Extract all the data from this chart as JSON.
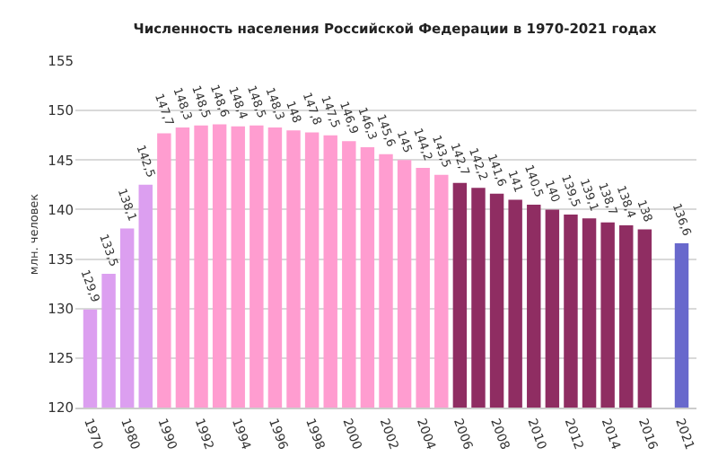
{
  "chart_data": {
    "type": "bar",
    "title": "Численность населения Российской Федерации в 1970-2021 годах",
    "ylabel": "млн. человек",
    "categories": [
      "1970",
      null,
      "1980",
      null,
      "1990",
      null,
      "1992",
      null,
      "1994",
      null,
      "1996",
      null,
      "1998",
      null,
      "2000",
      null,
      "2002",
      null,
      "2004",
      null,
      "2006",
      null,
      "2008",
      null,
      "2010",
      null,
      "2012",
      null,
      "2014",
      null,
      "2016",
      null,
      "2021"
    ],
    "values": [
      129.9,
      133.5,
      138.1,
      142.5,
      147.7,
      148.3,
      148.5,
      148.6,
      148.4,
      148.5,
      148.3,
      148,
      147.8,
      147.5,
      146.9,
      146.3,
      145.6,
      145,
      144.2,
      143.5,
      142.7,
      142.2,
      141.6,
      141,
      140.5,
      140,
      139.5,
      139.1,
      138.7,
      138.4,
      138,
      null,
      136.6
    ],
    "value_labels": [
      "129,9",
      "133,5",
      "138,1",
      "142,5",
      "147,7",
      "148,3",
      "148,5",
      "148,6",
      "148,4",
      "148,5",
      "148,3",
      "148",
      "147,8",
      "147,5",
      "146,9",
      "146,3",
      "145,6",
      "145",
      "144,2",
      "143,5",
      "142,7",
      "142,2",
      "141,6",
      "141",
      "140,5",
      "140",
      "139,5",
      "139,1",
      "138,7",
      "138,4",
      "138",
      null,
      "136,6"
    ],
    "colors": [
      "#dc9ff0",
      "#dc9ff0",
      "#dc9ff0",
      "#dc9ff0",
      "#ff9dd0",
      "#ff9dd0",
      "#ff9dd0",
      "#ff9dd0",
      "#ff9dd0",
      "#ff9dd0",
      "#ff9dd0",
      "#ff9dd0",
      "#ff9dd0",
      "#ff9dd0",
      "#ff9dd0",
      "#ff9dd0",
      "#ff9dd0",
      "#ff9dd0",
      "#ff9dd0",
      "#ff9dd0",
      "#8f2d62",
      "#8f2d62",
      "#8f2d62",
      "#8f2d62",
      "#8f2d62",
      "#8f2d62",
      "#8f2d62",
      "#8f2d62",
      "#8f2d62",
      "#8f2d62",
      "#8f2d62",
      "#8f2d62",
      "#6868cc"
    ],
    "ylim": [
      120,
      155
    ],
    "yticks": [
      120,
      125,
      130,
      135,
      140,
      145,
      150,
      155
    ],
    "grid": "y"
  }
}
